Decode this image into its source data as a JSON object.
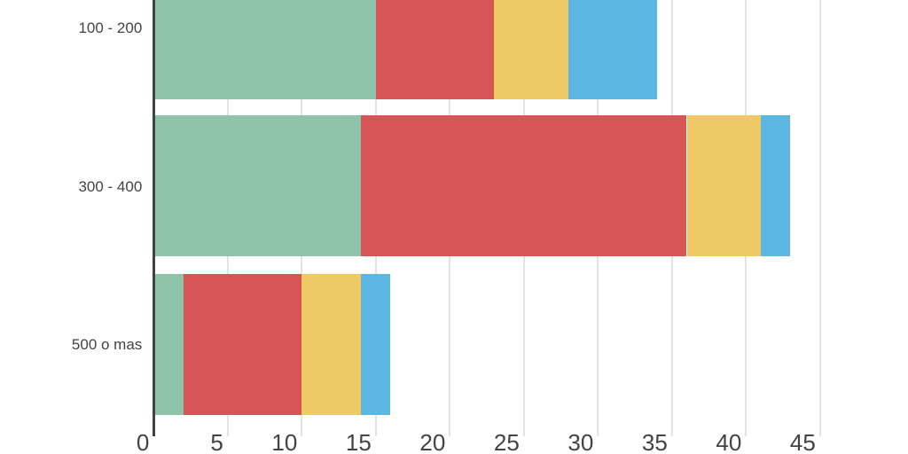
{
  "chart_data": {
    "type": "bar",
    "orientation": "horizontal",
    "stacked": true,
    "title": "",
    "xlabel": "",
    "ylabel": "",
    "categories": [
      "100 - 200",
      "300 - 400",
      "500 o mas"
    ],
    "series": [
      {
        "name": "series-green",
        "color": "#8DC3A6",
        "values": [
          15,
          14,
          2
        ]
      },
      {
        "name": "series-red",
        "color": "#D75457",
        "values": [
          8,
          22,
          8
        ]
      },
      {
        "name": "series-yellow",
        "color": "#EEC965",
        "values": [
          5,
          5,
          4
        ]
      },
      {
        "name": "series-blue",
        "color": "#5CB6E2",
        "values": [
          6,
          2,
          2
        ]
      }
    ],
    "stack_totals": [
      34,
      43,
      16
    ],
    "x_ticks": [
      0,
      5,
      10,
      15,
      20,
      25,
      30,
      35,
      40,
      45
    ],
    "xlim": [
      0,
      45
    ],
    "grid": true,
    "legend": "none",
    "layout_hints": "first category bar cropped at top edge; tick labels right-aligned left of gridlines"
  },
  "colors": {
    "background": "#FFFFFF",
    "axis_line": "#424242",
    "gridline": "#E3E3E3",
    "label_text": "#434343"
  }
}
